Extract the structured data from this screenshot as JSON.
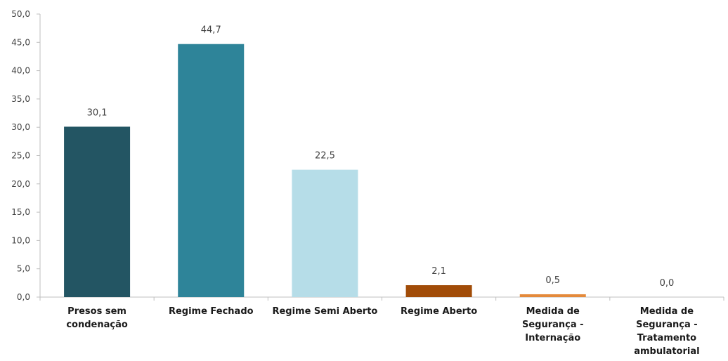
{
  "chart_data": {
    "type": "bar",
    "title": "",
    "xlabel": "",
    "ylabel": "",
    "ylim": [
      0,
      50
    ],
    "ytick_step": 5,
    "ytick_labels": [
      "0,0",
      "5,0",
      "10,0",
      "15,0",
      "20,0",
      "25,0",
      "30,0",
      "35,0",
      "40,0",
      "45,0",
      "50,0"
    ],
    "grid": false,
    "legend": "none",
    "categories": [
      [
        "Presos sem",
        "condenação"
      ],
      [
        "Regime Fechado"
      ],
      [
        "Regime Semi Aberto"
      ],
      [
        "Regime Aberto"
      ],
      [
        "Medida de",
        "Segurança -",
        "Internação"
      ],
      [
        "Medida de",
        "Segurança -",
        "Tratamento",
        "ambulatorial"
      ]
    ],
    "values": [
      30.1,
      44.7,
      22.5,
      2.1,
      0.5,
      0.0
    ],
    "value_labels": [
      "30,1",
      "44,7",
      "22,5",
      "2,1",
      "0,5",
      "0,0"
    ],
    "colors": [
      "#235563",
      "#2e8499",
      "#b6dde8",
      "#a14c08",
      "#e48a3b",
      "#e48a3b"
    ]
  }
}
